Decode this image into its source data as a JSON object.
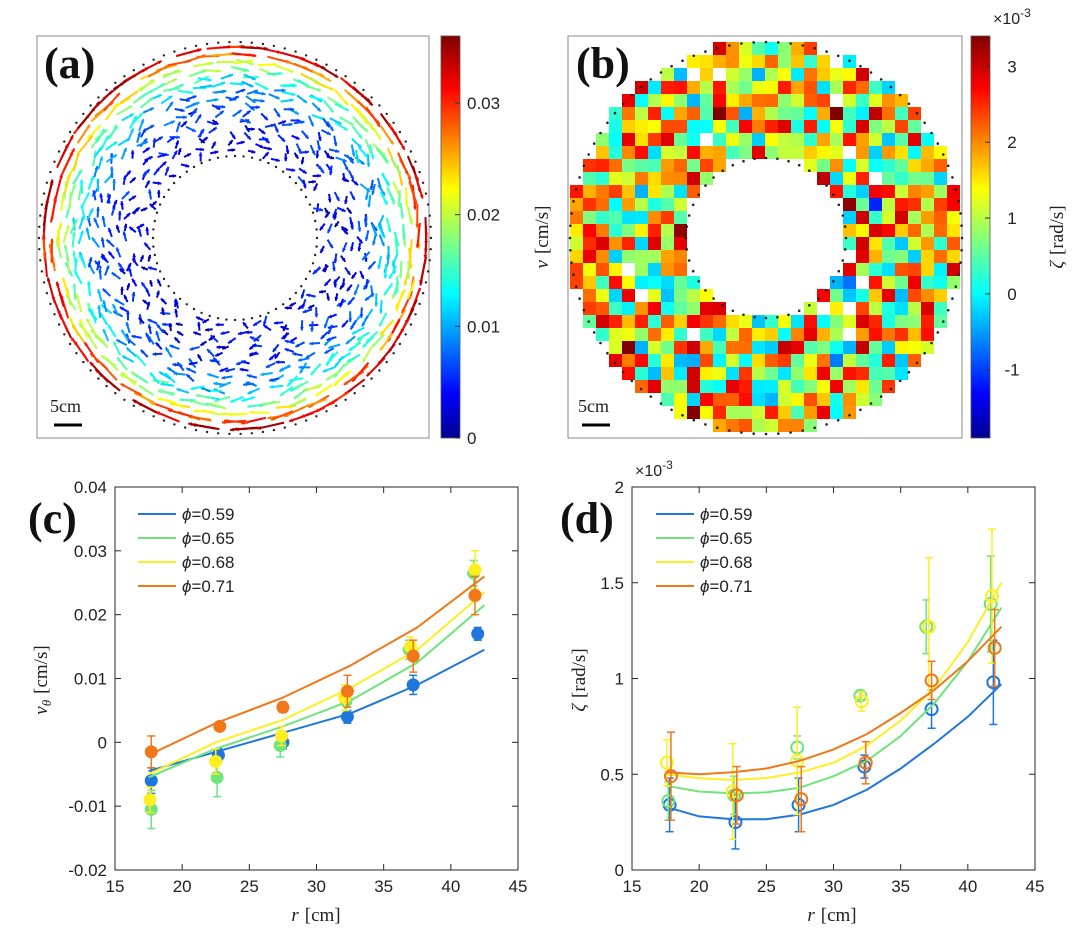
{
  "chart_data": [
    {
      "panel": "(a)",
      "type": "heatmap",
      "description_type": "vector-field",
      "colorbar": {
        "label_var": "v",
        "label_unit": "[cm/s]",
        "ticks": [
          "0",
          "0.01",
          "0.02",
          "0.03"
        ],
        "tick_values": [
          0,
          0.01,
          0.02,
          0.03
        ],
        "range": [
          0,
          0.036
        ]
      },
      "scalebar": "5cm"
    },
    {
      "panel": "(b)",
      "type": "heatmap",
      "colorbar": {
        "label_var": "ζ",
        "label_unit": "[rad/s]",
        "exponent": "×10",
        "exponent_power": "-3",
        "ticks": [
          "-1",
          "0",
          "1",
          "2",
          "3"
        ],
        "tick_values": [
          -1,
          0,
          1,
          2,
          3
        ],
        "range": [
          -1.9,
          3.4
        ]
      },
      "scalebar": "5cm"
    },
    {
      "panel": "(c)",
      "type": "scatter",
      "xlabel_var": "r",
      "xlabel_unit": "[cm]",
      "ylabel_var": "v",
      "ylabel_sub": "θ",
      "ylabel_unit": "[cm/s]",
      "xlim": [
        15,
        45
      ],
      "ylim": [
        -0.02,
        0.04
      ],
      "xticks": [
        15,
        20,
        25,
        30,
        35,
        40,
        45
      ],
      "xtick_labels": [
        "15",
        "20",
        "25",
        "30",
        "35",
        "40",
        "45"
      ],
      "yticks": [
        -0.02,
        -0.01,
        0,
        0.01,
        0.02,
        0.03,
        0.04
      ],
      "ytick_labels": [
        "-0.02",
        "-0.01",
        "0",
        "0.01",
        "0.02",
        "0.03",
        "0.04"
      ],
      "legend_position": "top-left",
      "series": [
        {
          "name": "=0.59",
          "phi": "ϕ",
          "color": "#1f77dd",
          "x": [
            17.7,
            22.7,
            27.5,
            32.3,
            37.2,
            42.0
          ],
          "y": [
            -0.006,
            -0.002,
            0.0,
            0.004,
            0.009,
            0.017
          ],
          "err": [
            0.002,
            0.001,
            0.001,
            0.001,
            0.0015,
            0.001
          ],
          "fit": [
            [
              17.5,
              -0.0045
            ],
            [
              22.5,
              -0.0015
            ],
            [
              27.5,
              0.0015
            ],
            [
              32.5,
              0.0045
            ],
            [
              37.5,
              0.009
            ],
            [
              42.5,
              0.0145
            ]
          ]
        },
        {
          "name": "=0.65",
          "phi": "ϕ",
          "color": "#6ee47a",
          "x": [
            17.7,
            22.6,
            27.3,
            32.2,
            36.9,
            41.7
          ],
          "y": [
            -0.0105,
            -0.0055,
            -0.0005,
            0.0065,
            0.0145,
            0.0265
          ],
          "err": [
            0.003,
            0.003,
            0.0018,
            0.0015,
            0.0015,
            0.002
          ],
          "fit": [
            [
              17.5,
              -0.0055
            ],
            [
              22.5,
              -0.001
            ],
            [
              27.5,
              0.0025
            ],
            [
              32.5,
              0.0065
            ],
            [
              37.5,
              0.0125
            ],
            [
              42.5,
              0.0215
            ]
          ]
        },
        {
          "name": "=0.68",
          "phi": "ϕ",
          "color": "#ffee22",
          "x": [
            17.6,
            22.5,
            27.4,
            32.1,
            37.0,
            41.8
          ],
          "y": [
            -0.009,
            -0.003,
            0.001,
            0.007,
            0.015,
            0.027
          ],
          "err": [
            0.002,
            0.002,
            0.0015,
            0.002,
            0.0015,
            0.003
          ],
          "fit": [
            [
              17.5,
              -0.005
            ],
            [
              22.5,
              0.0
            ],
            [
              27.5,
              0.0035
            ],
            [
              32.5,
              0.0085
            ],
            [
              37.5,
              0.0145
            ],
            [
              42.5,
              0.0235
            ]
          ]
        },
        {
          "name": "=0.71",
          "phi": "ϕ",
          "color": "#f07818",
          "x": [
            17.7,
            22.8,
            27.5,
            32.3,
            37.2,
            41.8
          ],
          "y": [
            -0.0015,
            0.0025,
            0.0055,
            0.008,
            0.0135,
            0.023
          ],
          "err": [
            0.0025,
            0.0005,
            0.0008,
            0.0025,
            0.0025,
            0.003
          ],
          "fit": [
            [
              17.5,
              -0.002
            ],
            [
              22.5,
              0.003
            ],
            [
              27.5,
              0.007
            ],
            [
              32.5,
              0.012
            ],
            [
              37.5,
              0.018
            ],
            [
              42.5,
              0.026
            ]
          ]
        }
      ]
    },
    {
      "panel": "(d)",
      "type": "scatter",
      "xlabel_var": "r",
      "xlabel_unit": "[cm]",
      "ylabel_var": "ζ",
      "ylabel_unit": "[rad/s]",
      "exponent": "×10",
      "exponent_power": "-3",
      "xlim": [
        15,
        45
      ],
      "ylim": [
        0,
        2
      ],
      "xticks": [
        15,
        20,
        25,
        30,
        35,
        40,
        45
      ],
      "xtick_labels": [
        "15",
        "20",
        "25",
        "30",
        "35",
        "40",
        "45"
      ],
      "yticks": [
        0,
        0.5,
        1,
        1.5,
        2
      ],
      "ytick_labels": [
        "0",
        "0.5",
        "1",
        "1.5",
        "2"
      ],
      "legend_position": "top-left",
      "series": [
        {
          "name": "=0.59",
          "phi": "ϕ",
          "color": "#1f77dd",
          "x": [
            17.8,
            22.7,
            27.4,
            32.3,
            37.3,
            41.9
          ],
          "y": [
            0.34,
            0.25,
            0.34,
            0.54,
            0.84,
            0.98
          ],
          "err": [
            0.14,
            0.14,
            0.14,
            0.06,
            0.1,
            0.22
          ],
          "fit": [
            [
              17.5,
              0.33
            ],
            [
              20,
              0.28
            ],
            [
              22.5,
              0.265
            ],
            [
              25,
              0.265
            ],
            [
              27.5,
              0.29
            ],
            [
              30,
              0.34
            ],
            [
              32.5,
              0.42
            ],
            [
              35,
              0.53
            ],
            [
              37.5,
              0.66
            ],
            [
              40,
              0.8
            ],
            [
              42.5,
              0.97
            ]
          ]
        },
        {
          "name": "=0.65",
          "phi": "ϕ",
          "color": "#6ee47a",
          "x": [
            17.7,
            22.6,
            27.3,
            32.0,
            36.9,
            41.7
          ],
          "y": [
            0.36,
            0.39,
            0.64,
            0.91,
            1.27,
            1.39
          ],
          "err": [
            0.1,
            0.1,
            0.06,
            0.02,
            0.14,
            0.25
          ],
          "fit": [
            [
              17.5,
              0.44
            ],
            [
              20,
              0.41
            ],
            [
              22.5,
              0.4
            ],
            [
              25,
              0.405
            ],
            [
              27.5,
              0.43
            ],
            [
              30,
              0.49
            ],
            [
              32.5,
              0.57
            ],
            [
              35,
              0.7
            ],
            [
              37.5,
              0.87
            ],
            [
              40,
              1.09
            ],
            [
              42.5,
              1.37
            ]
          ]
        },
        {
          "name": "=0.68",
          "phi": "ϕ",
          "color": "#ffee22",
          "x": [
            17.6,
            22.5,
            27.3,
            32.1,
            37.1,
            41.8
          ],
          "y": [
            0.56,
            0.41,
            0.57,
            0.88,
            1.27,
            1.43
          ],
          "err": [
            0.12,
            0.25,
            0.28,
            0.05,
            0.36,
            0.35
          ],
          "fit": [
            [
              17.5,
              0.5
            ],
            [
              20,
              0.48
            ],
            [
              22.5,
              0.47
            ],
            [
              25,
              0.48
            ],
            [
              27.5,
              0.51
            ],
            [
              30,
              0.56
            ],
            [
              32.5,
              0.65
            ],
            [
              35,
              0.78
            ],
            [
              37.5,
              0.95
            ],
            [
              40,
              1.19
            ],
            [
              42.5,
              1.5
            ]
          ]
        },
        {
          "name": "=0.71",
          "phi": "ϕ",
          "color": "#f07818",
          "x": [
            17.9,
            22.8,
            27.6,
            32.4,
            37.3,
            42.0
          ],
          "y": [
            0.49,
            0.39,
            0.37,
            0.56,
            0.99,
            1.16
          ],
          "err": [
            0.23,
            0.15,
            0.17,
            0.11,
            0.1,
            0.2
          ],
          "fit": [
            [
              17.5,
              0.51
            ],
            [
              20,
              0.5
            ],
            [
              22.5,
              0.51
            ],
            [
              25,
              0.53
            ],
            [
              27.5,
              0.57
            ],
            [
              30,
              0.63
            ],
            [
              32.5,
              0.71
            ],
            [
              35,
              0.82
            ],
            [
              37.5,
              0.94
            ],
            [
              40,
              1.09
            ],
            [
              42.5,
              1.27
            ]
          ]
        }
      ]
    }
  ]
}
